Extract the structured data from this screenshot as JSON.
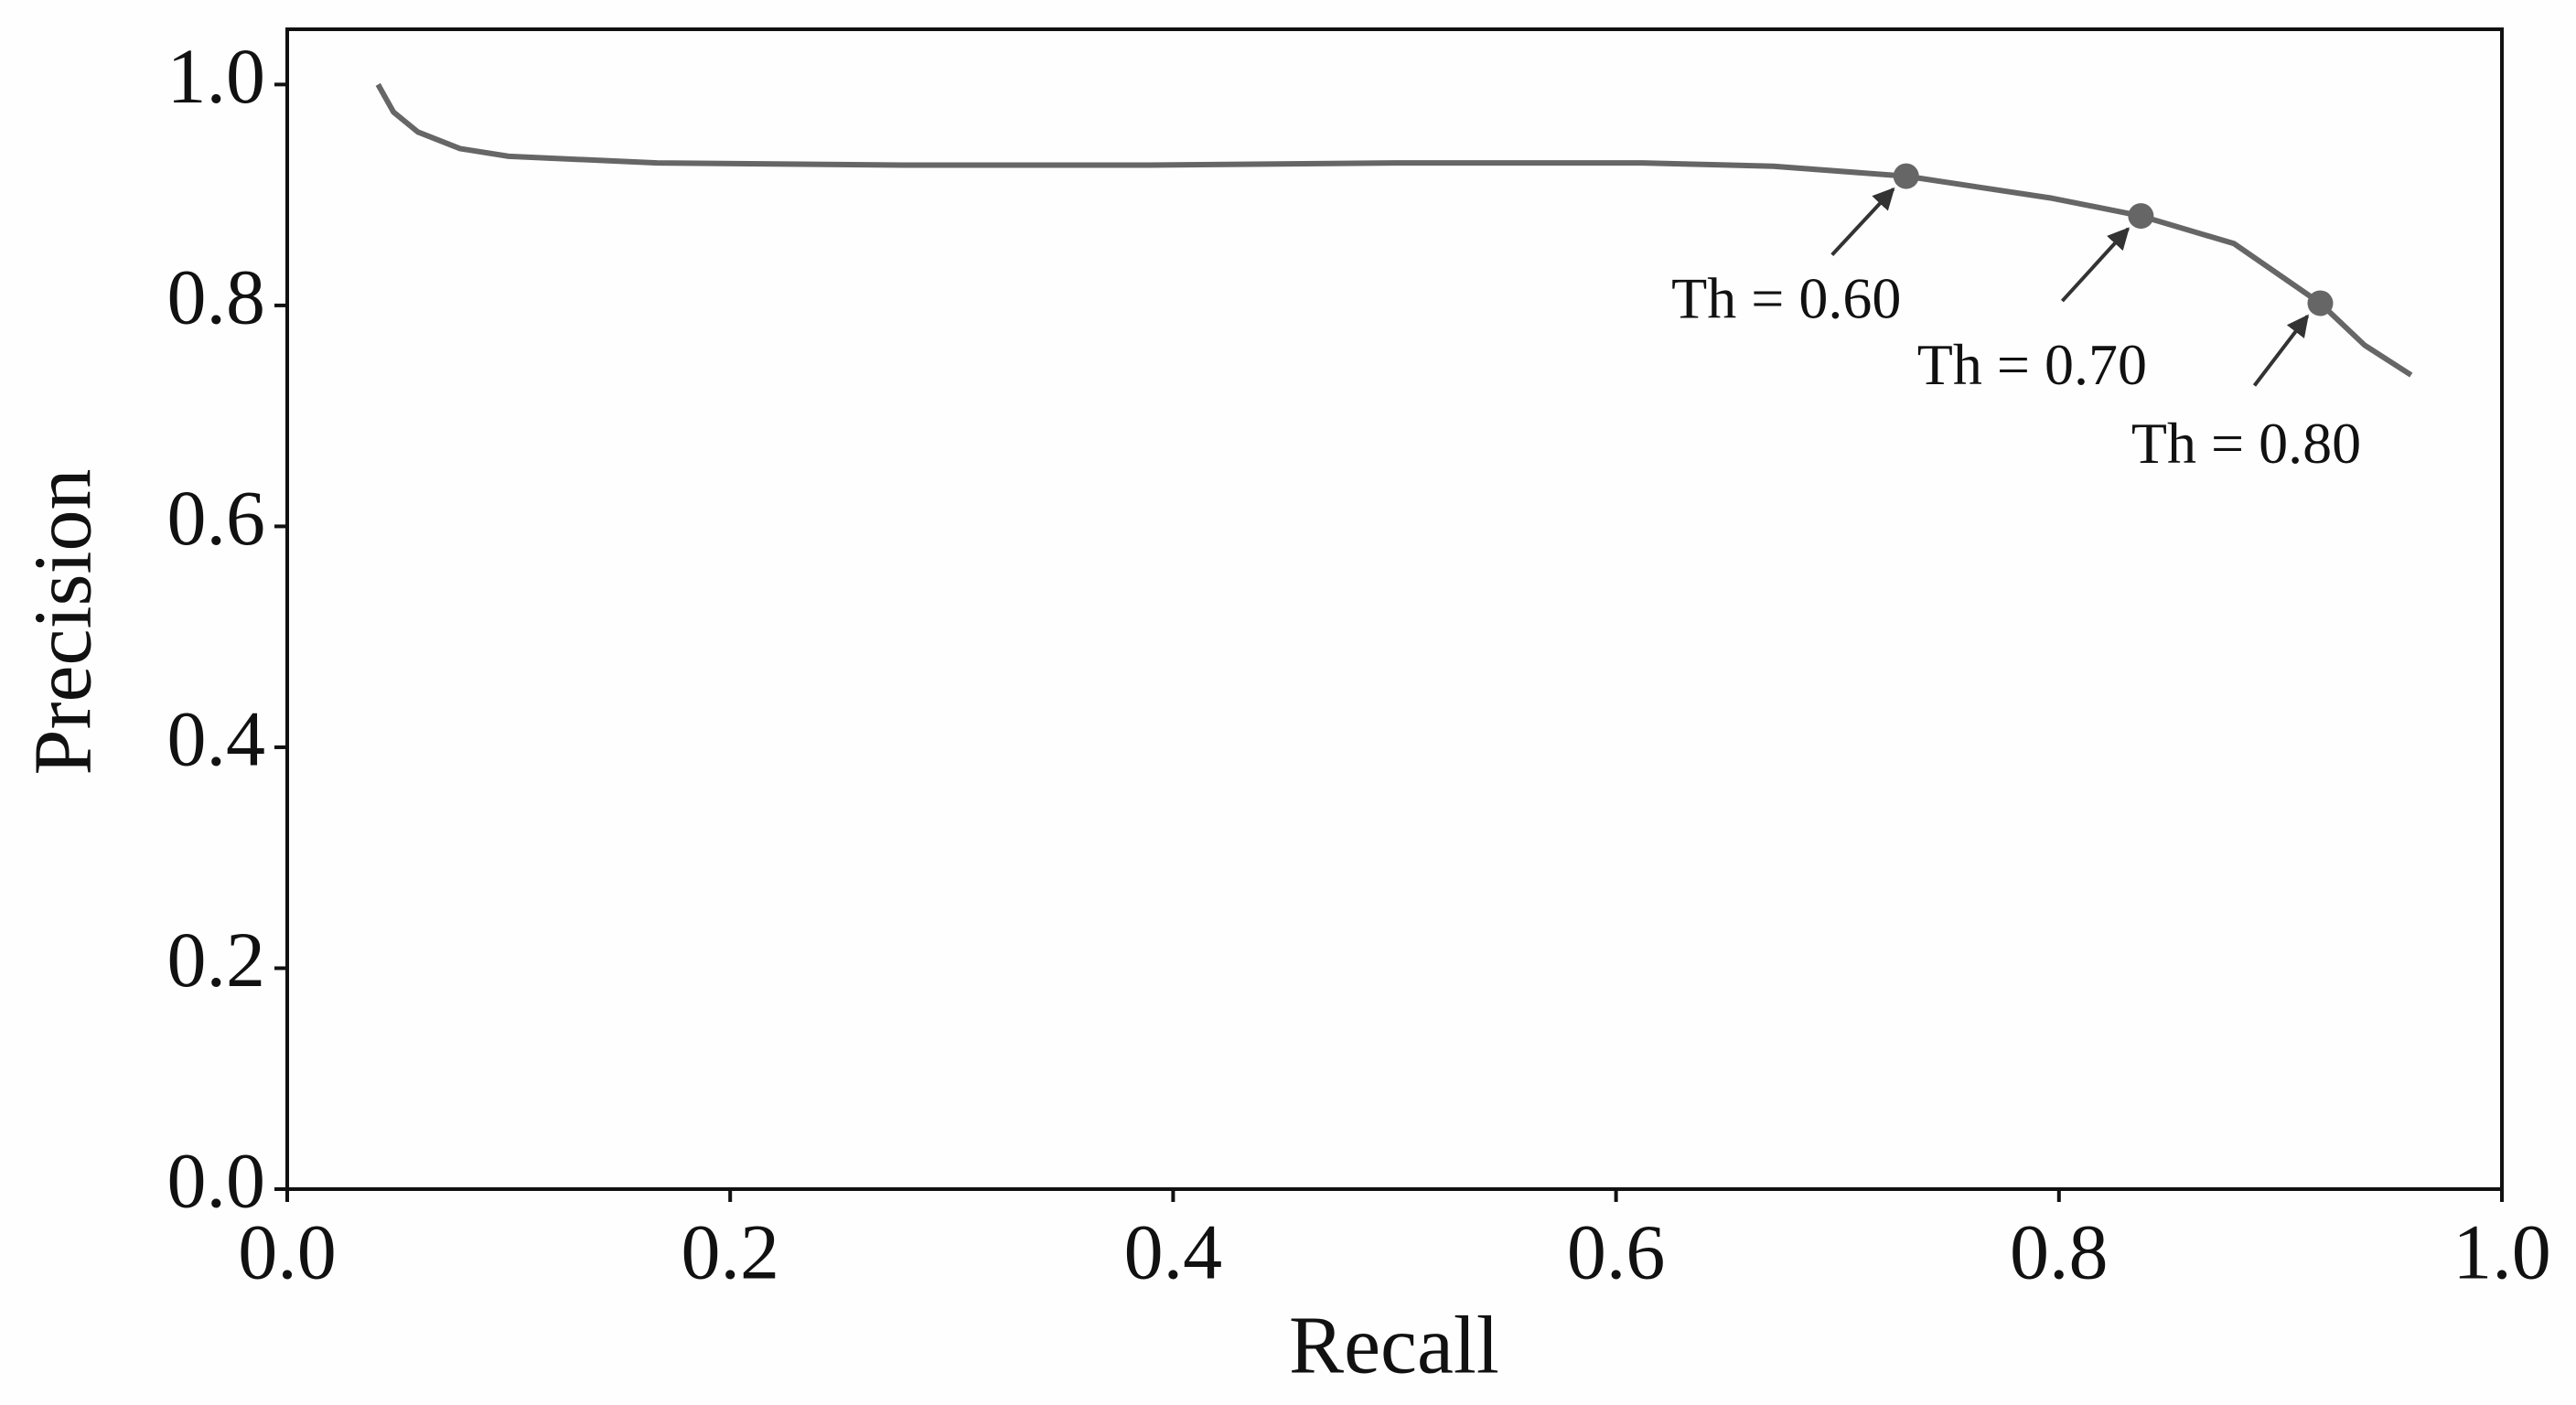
{
  "chart_data": {
    "type": "line",
    "x_label": "Recall",
    "y_label": "Precision",
    "x": [
      0.041,
      0.048,
      0.059,
      0.078,
      0.1,
      0.167,
      0.278,
      0.389,
      0.5,
      0.612,
      0.671,
      0.731,
      0.797,
      0.837,
      0.879,
      0.918,
      0.938,
      0.959
    ],
    "values": [
      1.0,
      0.975,
      0.957,
      0.942,
      0.935,
      0.929,
      0.927,
      0.927,
      0.929,
      0.929,
      0.926,
      0.917,
      0.897,
      0.881,
      0.856,
      0.802,
      0.764,
      0.737
    ],
    "color": "#666666",
    "points": [
      {
        "x": 0.731,
        "y": 0.917,
        "label": "Th = 0.60"
      },
      {
        "x": 0.837,
        "y": 0.881,
        "label": "Th = 0.70"
      },
      {
        "x": 0.918,
        "y": 0.802,
        "label": "Th = 0.80"
      }
    ],
    "xlim": [
      0,
      1
    ],
    "ylim": [
      0,
      1.05
    ],
    "xticks": [
      {
        "value": 0,
        "label": "0.0"
      },
      0.2,
      0.4,
      0.6,
      0.8,
      {
        "value": 1,
        "label": "1.0"
      }
    ],
    "yticks": [
      {
        "value": 0,
        "label": "0.0"
      },
      0.2,
      0.4,
      0.6,
      0.8,
      {
        "value": 1,
        "label": "1.0"
      }
    ],
    "grid": false
  }
}
